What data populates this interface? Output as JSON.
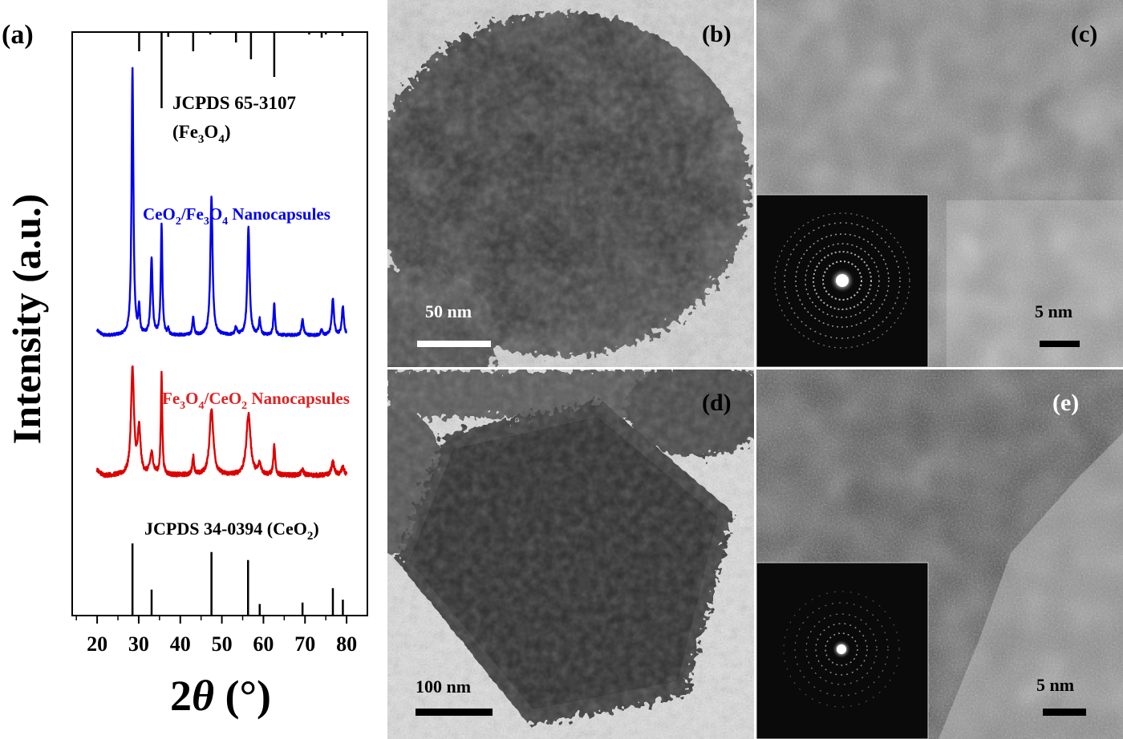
{
  "chart_data": {
    "type": "line",
    "panel_label": "(a)",
    "xlabel": "2θ (°)",
    "ylabel": "Intensity (a.u.)",
    "xlim": [
      14,
      85
    ],
    "xticks": [
      20,
      30,
      40,
      50,
      60,
      70,
      80
    ],
    "grid": false,
    "series": [
      {
        "name": "CeO2/Fe3O4 Nanocapsules",
        "color": "#0000ee",
        "offset": 0.48,
        "peaks": [
          {
            "x": 28.5,
            "h": 1.0,
            "w": 0.26
          },
          {
            "x": 30.1,
            "h": 0.1,
            "w": 0.2
          },
          {
            "x": 33.1,
            "h": 0.29,
            "w": 0.28
          },
          {
            "x": 35.5,
            "h": 0.42,
            "w": 0.22
          },
          {
            "x": 37.1,
            "h": 0.02,
            "w": 0.2
          },
          {
            "x": 43.1,
            "h": 0.07,
            "w": 0.22
          },
          {
            "x": 47.5,
            "h": 0.52,
            "w": 0.32
          },
          {
            "x": 53.4,
            "h": 0.03,
            "w": 0.25
          },
          {
            "x": 56.4,
            "h": 0.41,
            "w": 0.32
          },
          {
            "x": 59.1,
            "h": 0.06,
            "w": 0.25
          },
          {
            "x": 62.6,
            "h": 0.12,
            "w": 0.22
          },
          {
            "x": 69.4,
            "h": 0.06,
            "w": 0.28
          },
          {
            "x": 74.0,
            "h": 0.02,
            "w": 0.25
          },
          {
            "x": 76.7,
            "h": 0.14,
            "w": 0.3
          },
          {
            "x": 79.1,
            "h": 0.11,
            "w": 0.28
          }
        ]
      },
      {
        "name": "Fe3O4/CeO2 Nanocapsules",
        "color": "#dd0000",
        "offset": 0.24,
        "peaks": [
          {
            "x": 28.5,
            "h": 0.4,
            "w": 0.42
          },
          {
            "x": 30.1,
            "h": 0.17,
            "w": 0.4
          },
          {
            "x": 33.1,
            "h": 0.08,
            "w": 0.45
          },
          {
            "x": 35.5,
            "h": 0.38,
            "w": 0.2
          },
          {
            "x": 43.1,
            "h": 0.07,
            "w": 0.25
          },
          {
            "x": 47.5,
            "h": 0.25,
            "w": 0.55
          },
          {
            "x": 56.4,
            "h": 0.23,
            "w": 0.6
          },
          {
            "x": 59.1,
            "h": 0.04,
            "w": 0.4
          },
          {
            "x": 62.6,
            "h": 0.11,
            "w": 0.25
          },
          {
            "x": 69.4,
            "h": 0.02,
            "w": 0.4
          },
          {
            "x": 76.7,
            "h": 0.05,
            "w": 0.4
          },
          {
            "x": 79.1,
            "h": 0.03,
            "w": 0.4
          }
        ]
      }
    ],
    "reference_patterns": [
      {
        "label_line1": "JCPDS 65-3107",
        "label_line2": "(Fe3O4)",
        "position": "top",
        "lines": [
          {
            "x": 30.1,
            "h": 0.24
          },
          {
            "x": 35.5,
            "h": 0.95
          },
          {
            "x": 37.1,
            "h": 0.06
          },
          {
            "x": 43.1,
            "h": 0.24
          },
          {
            "x": 47.2,
            "h": 0.03
          },
          {
            "x": 53.4,
            "h": 0.13
          },
          {
            "x": 57.0,
            "h": 0.34
          },
          {
            "x": 62.6,
            "h": 0.56
          },
          {
            "x": 71.0,
            "h": 0.03
          },
          {
            "x": 74.0,
            "h": 0.07
          },
          {
            "x": 75.0,
            "h": 0.03
          },
          {
            "x": 79.0,
            "h": 0.05
          }
        ]
      },
      {
        "label": "JCPDS 34-0394 (CeO2)",
        "position": "bottom",
        "lines": [
          {
            "x": 28.5,
            "h": 1.0
          },
          {
            "x": 33.1,
            "h": 0.36
          },
          {
            "x": 47.5,
            "h": 0.88
          },
          {
            "x": 56.3,
            "h": 0.77
          },
          {
            "x": 59.1,
            "h": 0.16
          },
          {
            "x": 69.4,
            "h": 0.18
          },
          {
            "x": 76.7,
            "h": 0.38
          },
          {
            "x": 79.1,
            "h": 0.22
          }
        ]
      }
    ]
  },
  "labels": {
    "fe3o4_ref_line1": "JCPDS 65-3107",
    "fe3o4_ref_line2_prefix": "(Fe",
    "fe3o4_ref_line2_sub1": "3",
    "fe3o4_ref_line2_mid": "O",
    "fe3o4_ref_line2_sub2": "4",
    "fe3o4_ref_line2_suffix": ")",
    "blue_prefix": "CeO",
    "blue_sub1": "2",
    "blue_mid1": "/Fe",
    "blue_sub2": "3",
    "blue_mid2": "O",
    "blue_sub3": "4",
    "blue_suffix": " Nanocapsules",
    "red_prefix": "Fe",
    "red_sub1": "3",
    "red_mid1": "O",
    "red_sub2": "4",
    "red_mid2": "/CeO",
    "red_sub3": "2",
    "red_suffix": " Nanocapsules",
    "ceo2_ref_prefix": "JCPDS 34-0394 (CeO",
    "ceo2_ref_sub": "2",
    "ceo2_ref_suffix": ")",
    "ylabel": "Intensity (a.u.)",
    "xlabel_num": "2",
    "xlabel_theta": "θ",
    "xlabel_unit": " (°)"
  },
  "micrographs": [
    {
      "panel": "(b)",
      "scale_label": "50 nm",
      "inset": false,
      "image_type": "tem-sphere-particle"
    },
    {
      "panel": "(c)",
      "scale_label": "5 nm",
      "inset": true,
      "image_type": "hrtem-lattice"
    },
    {
      "panel": "(d)",
      "scale_label": "100 nm",
      "inset": false,
      "image_type": "tem-cube-particle"
    },
    {
      "panel": "(e)",
      "scale_label": "5 nm",
      "inset": true,
      "image_type": "hrtem-lattice"
    }
  ]
}
